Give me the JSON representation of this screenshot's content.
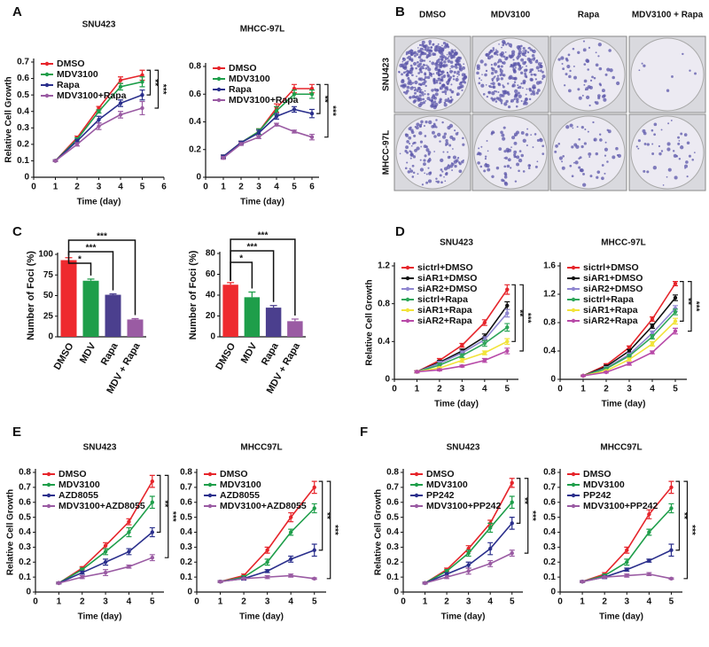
{
  "panel_labels": [
    "A",
    "B",
    "C",
    "D",
    "E",
    "F"
  ],
  "colony_assay": {
    "columns": [
      "DMSO",
      "MDV3100",
      "Rapa",
      "MDV3100 + Rapa"
    ],
    "rows": [
      "SNU423",
      "MHCC-97L"
    ]
  },
  "chart_data": [
    {
      "type": "line",
      "title": "SNU423",
      "xlabel": "Time (day)",
      "ylabel": "Relative Cell Growth",
      "x": [
        1,
        2,
        3,
        4,
        5
      ],
      "xlim": [
        0,
        6
      ],
      "xticks": [
        0,
        1,
        2,
        3,
        4,
        5,
        6
      ],
      "ylim": [
        0,
        0.7
      ],
      "yticks": [
        0,
        0.1,
        0.2,
        0.3,
        0.4,
        0.5,
        0.6,
        0.7
      ],
      "series": [
        {
          "name": "DMSO",
          "color": "#e6252b",
          "values": [
            0.1,
            0.24,
            0.42,
            0.59,
            0.62
          ],
          "errors": [
            0.005,
            0.01,
            0.01,
            0.02,
            0.03
          ]
        },
        {
          "name": "MDV3100",
          "color": "#1e9e4a",
          "values": [
            0.1,
            0.23,
            0.4,
            0.55,
            0.58
          ],
          "errors": [
            0.005,
            0.01,
            0.01,
            0.02,
            0.03
          ]
        },
        {
          "name": "Rapa",
          "color": "#2a2f8c",
          "values": [
            0.1,
            0.22,
            0.35,
            0.45,
            0.5
          ],
          "errors": [
            0.005,
            0.01,
            0.02,
            0.02,
            0.03
          ]
        },
        {
          "name": "MDV3100+Rapa",
          "color": "#9a5ba3",
          "values": [
            0.1,
            0.2,
            0.31,
            0.38,
            0.42
          ],
          "errors": [
            0.005,
            0.01,
            0.02,
            0.02,
            0.04
          ]
        }
      ],
      "annotations": [
        "**",
        "***"
      ]
    },
    {
      "type": "line",
      "title": "MHCC-97L",
      "xlabel": "Time (day)",
      "x": [
        1,
        2,
        3,
        4,
        5,
        6
      ],
      "xlim": [
        0,
        6.4
      ],
      "xticks": [
        0,
        1,
        2,
        3,
        4,
        5,
        6
      ],
      "ylim": [
        0,
        0.8
      ],
      "yticks": [
        0,
        0.2,
        0.4,
        0.6,
        0.8
      ],
      "series": [
        {
          "name": "DMSO",
          "color": "#e6252b",
          "values": [
            0.15,
            0.25,
            0.33,
            0.5,
            0.64,
            0.64
          ],
          "errors": [
            0.01,
            0.01,
            0.02,
            0.03,
            0.03,
            0.03
          ]
        },
        {
          "name": "MDV3100",
          "color": "#1e9e4a",
          "values": [
            0.15,
            0.25,
            0.33,
            0.48,
            0.6,
            0.6
          ],
          "errors": [
            0.01,
            0.01,
            0.02,
            0.03,
            0.03,
            0.03
          ]
        },
        {
          "name": "Rapa",
          "color": "#2a2f8c",
          "values": [
            0.15,
            0.25,
            0.32,
            0.44,
            0.49,
            0.46
          ],
          "errors": [
            0.01,
            0.01,
            0.02,
            0.02,
            0.02,
            0.03
          ]
        },
        {
          "name": "MDV3100+Rapa",
          "color": "#9a5ba3",
          "values": [
            0.14,
            0.24,
            0.29,
            0.38,
            0.33,
            0.29
          ],
          "errors": [
            0.01,
            0.01,
            0.01,
            0.01,
            0.01,
            0.02
          ]
        }
      ],
      "annotations": [
        "**",
        "***"
      ]
    },
    {
      "type": "bar",
      "ylabel": "Number of  Foci (%)",
      "categories": [
        "DMSO",
        "MDV",
        "Rapa",
        "MDV + Rapa"
      ],
      "values": [
        93,
        68,
        51,
        21
      ],
      "errors": [
        3,
        2,
        1,
        1
      ],
      "colors": [
        "#ee2a2e",
        "#1e9e4a",
        "#4b3f8e",
        "#9a5ba3"
      ],
      "ylim": [
        0,
        100
      ],
      "yticks": [
        0,
        25,
        50,
        75,
        100
      ],
      "annotations": [
        "*",
        "***",
        "***"
      ]
    },
    {
      "type": "bar",
      "ylabel": "Number of  Foci (%)",
      "categories": [
        "DMSO",
        "MDV",
        "Rapa",
        "MDV + Rapa"
      ],
      "values": [
        50,
        38,
        28,
        15
      ],
      "errors": [
        2,
        5,
        2,
        2
      ],
      "colors": [
        "#ee2a2e",
        "#1e9e4a",
        "#4b3f8e",
        "#9a5ba3"
      ],
      "ylim": [
        0,
        80
      ],
      "yticks": [
        0,
        20,
        40,
        60,
        80
      ],
      "annotations": [
        "*",
        "***",
        "***"
      ]
    },
    {
      "type": "line",
      "title": "SNU423",
      "xlabel": "Time (day)",
      "ylabel": "Relative Cell Growth",
      "x": [
        1,
        2,
        3,
        4,
        5
      ],
      "xlim": [
        0,
        5.5
      ],
      "xticks": [
        0,
        1,
        2,
        3,
        4,
        5
      ],
      "ylim": [
        0,
        1.2
      ],
      "yticks": [
        0,
        0.4,
        0.8,
        1.2
      ],
      "series": [
        {
          "name": "sictrl+DMSO",
          "color": "#e6252b",
          "values": [
            0.08,
            0.2,
            0.36,
            0.6,
            0.95
          ],
          "errors": [
            0.01,
            0.02,
            0.02,
            0.03,
            0.05
          ]
        },
        {
          "name": "siAR1+DMSO",
          "color": "#111111",
          "values": [
            0.08,
            0.18,
            0.3,
            0.45,
            0.78
          ],
          "errors": [
            0.01,
            0.02,
            0.02,
            0.03,
            0.04
          ]
        },
        {
          "name": "siAR2+DMSO",
          "color": "#8f86d0",
          "values": [
            0.08,
            0.17,
            0.28,
            0.42,
            0.7
          ],
          "errors": [
            0.01,
            0.02,
            0.02,
            0.03,
            0.04
          ]
        },
        {
          "name": "sictrl+Rapa",
          "color": "#2fa65a",
          "values": [
            0.08,
            0.15,
            0.25,
            0.38,
            0.55
          ],
          "errors": [
            0.01,
            0.02,
            0.02,
            0.03,
            0.04
          ]
        },
        {
          "name": "siAR1+Rapa",
          "color": "#f2e33a",
          "values": [
            0.08,
            0.12,
            0.2,
            0.28,
            0.4
          ],
          "errors": [
            0.01,
            0.01,
            0.02,
            0.02,
            0.03
          ]
        },
        {
          "name": "siAR2+Rapa",
          "color": "#b84aa8",
          "values": [
            0.08,
            0.1,
            0.14,
            0.2,
            0.3
          ],
          "errors": [
            0.01,
            0.01,
            0.01,
            0.02,
            0.03
          ]
        }
      ],
      "annotations": [
        "**",
        "***"
      ]
    },
    {
      "type": "line",
      "title": "MHCC-97L",
      "xlabel": "Time (day)",
      "x": [
        1,
        2,
        3,
        4,
        5
      ],
      "xlim": [
        0,
        5.5
      ],
      "xticks": [
        0,
        1,
        2,
        3,
        4,
        5
      ],
      "ylim": [
        0,
        1.6
      ],
      "yticks": [
        0,
        0.4,
        0.8,
        1.2,
        1.6
      ],
      "series": [
        {
          "name": "sictrl+DMSO",
          "color": "#e6252b",
          "values": [
            0.05,
            0.2,
            0.45,
            0.85,
            1.35
          ],
          "errors": [
            0.01,
            0.02,
            0.02,
            0.03,
            0.03
          ]
        },
        {
          "name": "siAR1+DMSO",
          "color": "#111111",
          "values": [
            0.05,
            0.18,
            0.4,
            0.75,
            1.15
          ],
          "errors": [
            0.01,
            0.02,
            0.02,
            0.03,
            0.04
          ]
        },
        {
          "name": "siAR2+DMSO",
          "color": "#8f86d0",
          "values": [
            0.05,
            0.16,
            0.35,
            0.65,
            1.0
          ],
          "errors": [
            0.01,
            0.02,
            0.02,
            0.03,
            0.04
          ]
        },
        {
          "name": "sictrl+Rapa",
          "color": "#2fa65a",
          "values": [
            0.05,
            0.15,
            0.33,
            0.6,
            0.95
          ],
          "errors": [
            0.01,
            0.02,
            0.02,
            0.03,
            0.04
          ]
        },
        {
          "name": "siAR1+Rapa",
          "color": "#f2e33a",
          "values": [
            0.05,
            0.12,
            0.28,
            0.5,
            0.82
          ],
          "errors": [
            0.01,
            0.01,
            0.02,
            0.03,
            0.04
          ]
        },
        {
          "name": "siAR2+Rapa",
          "color": "#b84aa8",
          "values": [
            0.05,
            0.1,
            0.22,
            0.38,
            0.68
          ],
          "errors": [
            0.01,
            0.01,
            0.02,
            0.02,
            0.04
          ]
        }
      ],
      "annotations": [
        "**",
        "***"
      ]
    },
    {
      "type": "line",
      "title": "SNU423",
      "xlabel": "Time (day)",
      "ylabel": "Relative Cell Growth",
      "x": [
        1,
        2,
        3,
        4,
        5
      ],
      "xlim": [
        0,
        5.5
      ],
      "xticks": [
        0,
        1,
        2,
        3,
        4,
        5
      ],
      "ylim": [
        0,
        0.8
      ],
      "yticks": [
        0,
        0.1,
        0.2,
        0.3,
        0.4,
        0.5,
        0.6,
        0.7,
        0.8
      ],
      "series": [
        {
          "name": "DMSO",
          "color": "#e6252b",
          "values": [
            0.06,
            0.16,
            0.31,
            0.47,
            0.74
          ],
          "errors": [
            0.005,
            0.01,
            0.02,
            0.02,
            0.04
          ]
        },
        {
          "name": "MDV3100",
          "color": "#1e9e4a",
          "values": [
            0.06,
            0.15,
            0.27,
            0.4,
            0.6
          ],
          "errors": [
            0.005,
            0.01,
            0.02,
            0.03,
            0.04
          ]
        },
        {
          "name": "AZD8055",
          "color": "#2a2f8c",
          "values": [
            0.06,
            0.13,
            0.2,
            0.27,
            0.4
          ],
          "errors": [
            0.005,
            0.01,
            0.02,
            0.02,
            0.03
          ]
        },
        {
          "name": "MDV3100+AZD8055",
          "color": "#9a5ba3",
          "values": [
            0.06,
            0.1,
            0.13,
            0.17,
            0.23
          ],
          "errors": [
            0.005,
            0.01,
            0.02,
            0.01,
            0.02
          ]
        }
      ],
      "annotations": [
        "**",
        "***"
      ]
    },
    {
      "type": "line",
      "title": "MHCC97L",
      "xlabel": "Time (day)",
      "x": [
        1,
        2,
        3,
        4,
        5
      ],
      "xlim": [
        0,
        5.5
      ],
      "xticks": [
        0,
        1,
        2,
        3,
        4,
        5
      ],
      "ylim": [
        0,
        0.8
      ],
      "yticks": [
        0,
        0.1,
        0.2,
        0.3,
        0.4,
        0.5,
        0.6,
        0.7,
        0.8
      ],
      "series": [
        {
          "name": "DMSO",
          "color": "#e6252b",
          "values": [
            0.07,
            0.11,
            0.28,
            0.5,
            0.7
          ],
          "errors": [
            0.005,
            0.01,
            0.02,
            0.03,
            0.04
          ]
        },
        {
          "name": "MDV3100",
          "color": "#1e9e4a",
          "values": [
            0.07,
            0.1,
            0.2,
            0.4,
            0.56
          ],
          "errors": [
            0.005,
            0.01,
            0.02,
            0.02,
            0.03
          ]
        },
        {
          "name": "AZD8055",
          "color": "#2a2f8c",
          "values": [
            0.07,
            0.09,
            0.14,
            0.22,
            0.28
          ],
          "errors": [
            0.005,
            0.01,
            0.01,
            0.02,
            0.04
          ]
        },
        {
          "name": "MDV3100+AZD8055",
          "color": "#9a5ba3",
          "values": [
            0.07,
            0.09,
            0.1,
            0.11,
            0.09
          ],
          "errors": [
            0.005,
            0.005,
            0.01,
            0.01,
            0.005
          ]
        }
      ],
      "annotations": [
        "**",
        "***"
      ]
    },
    {
      "type": "line",
      "title": "SNU423",
      "xlabel": "Time (day)",
      "ylabel": "Relative Cell Growth",
      "x": [
        1,
        2,
        3,
        4,
        5
      ],
      "xlim": [
        0,
        5.5
      ],
      "xticks": [
        0,
        1,
        2,
        3,
        4,
        5
      ],
      "ylim": [
        0,
        0.8
      ],
      "yticks": [
        0,
        0.1,
        0.2,
        0.3,
        0.4,
        0.5,
        0.6,
        0.7,
        0.8
      ],
      "series": [
        {
          "name": "DMSO",
          "color": "#e6252b",
          "values": [
            0.06,
            0.15,
            0.29,
            0.46,
            0.73
          ],
          "errors": [
            0.005,
            0.01,
            0.02,
            0.02,
            0.03
          ]
        },
        {
          "name": "MDV3100",
          "color": "#1e9e4a",
          "values": [
            0.06,
            0.14,
            0.26,
            0.43,
            0.6
          ],
          "errors": [
            0.005,
            0.01,
            0.02,
            0.03,
            0.04
          ]
        },
        {
          "name": "PP242",
          "color": "#2a2f8c",
          "values": [
            0.06,
            0.12,
            0.18,
            0.29,
            0.46
          ],
          "errors": [
            0.005,
            0.01,
            0.02,
            0.04,
            0.04
          ]
        },
        {
          "name": "MDV3100+PP242",
          "color": "#9a5ba3",
          "values": [
            0.06,
            0.1,
            0.14,
            0.19,
            0.26
          ],
          "errors": [
            0.005,
            0.01,
            0.02,
            0.02,
            0.02
          ]
        }
      ],
      "annotations": [
        "**",
        "***"
      ]
    },
    {
      "type": "line",
      "title": "MHCC97L",
      "xlabel": "Time (day)",
      "x": [
        1,
        2,
        3,
        4,
        5
      ],
      "xlim": [
        0,
        5.5
      ],
      "xticks": [
        0,
        1,
        2,
        3,
        4,
        5
      ],
      "ylim": [
        0,
        0.8
      ],
      "yticks": [
        0,
        0.1,
        0.2,
        0.3,
        0.4,
        0.5,
        0.6,
        0.7,
        0.8
      ],
      "series": [
        {
          "name": "DMSO",
          "color": "#e6252b",
          "values": [
            0.07,
            0.12,
            0.28,
            0.52,
            0.7
          ],
          "errors": [
            0.005,
            0.01,
            0.02,
            0.03,
            0.04
          ]
        },
        {
          "name": "MDV3100",
          "color": "#1e9e4a",
          "values": [
            0.07,
            0.11,
            0.2,
            0.4,
            0.56
          ],
          "errors": [
            0.005,
            0.01,
            0.02,
            0.02,
            0.03
          ]
        },
        {
          "name": "PP242",
          "color": "#2a2f8c",
          "values": [
            0.07,
            0.1,
            0.15,
            0.21,
            0.28
          ],
          "errors": [
            0.005,
            0.01,
            0.01,
            0.01,
            0.04
          ]
        },
        {
          "name": "MDV3100+PP242",
          "color": "#9a5ba3",
          "values": [
            0.07,
            0.1,
            0.11,
            0.12,
            0.09
          ],
          "errors": [
            0.005,
            0.005,
            0.01,
            0.01,
            0.005
          ]
        }
      ],
      "annotations": [
        "**",
        "***"
      ]
    }
  ]
}
